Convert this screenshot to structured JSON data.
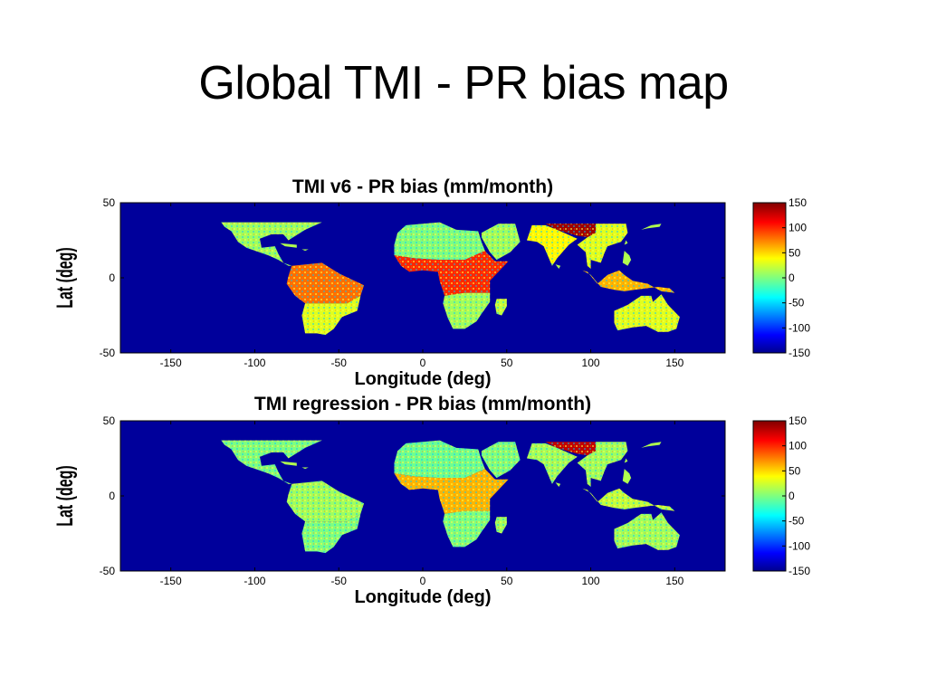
{
  "slide": {
    "title": "Global TMI - PR bias map"
  },
  "chart_data": [
    {
      "type": "heatmap",
      "title": "TMI v6 - PR bias (mm/month)",
      "xlabel": "Longitude (deg)",
      "ylabel": "Lat (deg)",
      "xlim": [
        -180,
        180
      ],
      "ylim": [
        -50,
        50
      ],
      "x_ticks": [
        -150,
        -100,
        -50,
        0,
        50,
        100,
        150
      ],
      "y_ticks": [
        50,
        0,
        -50
      ],
      "x_tick_labels": [
        "-150",
        "-100",
        "-50",
        "0",
        "50",
        "100",
        "150"
      ],
      "y_tick_labels": [
        "50",
        "0",
        "-50"
      ],
      "colorbar": {
        "range": [
          -150,
          150
        ],
        "ticks": [
          150,
          100,
          50,
          0,
          -50,
          -100,
          -150
        ],
        "tick_labels": [
          "150",
          "100",
          "50",
          "0",
          "-50",
          "-100",
          "-150"
        ],
        "colormap": "jet"
      },
      "background_color": "#00009b",
      "regions": [
        {
          "region": "North/Central America",
          "bias_mm_month": 10
        },
        {
          "region": "Amazon basin",
          "bias_mm_month": 80
        },
        {
          "region": "Southern South America",
          "bias_mm_month": 30
        },
        {
          "region": "Sahara / North Africa",
          "bias_mm_month": 0
        },
        {
          "region": "Central Africa",
          "bias_mm_month": 100
        },
        {
          "region": "Southern Africa",
          "bias_mm_month": 10
        },
        {
          "region": "Arabia",
          "bias_mm_month": 10
        },
        {
          "region": "India",
          "bias_mm_month": 40
        },
        {
          "region": "Himalaya / Tibet",
          "bias_mm_month": 140
        },
        {
          "region": "East Asia",
          "bias_mm_month": 30
        },
        {
          "region": "Maritime Continent",
          "bias_mm_month": 60
        },
        {
          "region": "Australia",
          "bias_mm_month": 30
        },
        {
          "region": "Madagascar",
          "bias_mm_month": 20
        }
      ]
    },
    {
      "type": "heatmap",
      "title": "TMI regression - PR bias (mm/month)",
      "xlabel": "Longitude (deg)",
      "ylabel": "Lat (deg)",
      "xlim": [
        -180,
        180
      ],
      "ylim": [
        -50,
        50
      ],
      "x_ticks": [
        -150,
        -100,
        -50,
        0,
        50,
        100,
        150
      ],
      "y_ticks": [
        50,
        0,
        -50
      ],
      "x_tick_labels": [
        "-150",
        "-100",
        "-50",
        "0",
        "50",
        "100",
        "150"
      ],
      "y_tick_labels": [
        "50",
        "0",
        "-50"
      ],
      "colorbar": {
        "range": [
          -150,
          150
        ],
        "ticks": [
          150,
          100,
          50,
          0,
          -50,
          -100,
          -150
        ],
        "tick_labels": [
          "150",
          "100",
          "50",
          "0",
          "-50",
          "-100",
          "-150"
        ],
        "colormap": "jet"
      },
      "background_color": "#00009b",
      "regions": [
        {
          "region": "North/Central America",
          "bias_mm_month": 0
        },
        {
          "region": "Amazon basin",
          "bias_mm_month": 10
        },
        {
          "region": "Southern South America",
          "bias_mm_month": 0
        },
        {
          "region": "Sahara / North Africa",
          "bias_mm_month": -5
        },
        {
          "region": "Central Africa",
          "bias_mm_month": 60
        },
        {
          "region": "Southern Africa",
          "bias_mm_month": 0
        },
        {
          "region": "Arabia",
          "bias_mm_month": 0
        },
        {
          "region": "India",
          "bias_mm_month": 10
        },
        {
          "region": "Himalaya / Tibet",
          "bias_mm_month": 130
        },
        {
          "region": "East Asia",
          "bias_mm_month": 10
        },
        {
          "region": "Maritime Continent",
          "bias_mm_month": 20
        },
        {
          "region": "Australia",
          "bias_mm_month": 10
        },
        {
          "region": "Madagascar",
          "bias_mm_month": 10
        }
      ]
    }
  ]
}
